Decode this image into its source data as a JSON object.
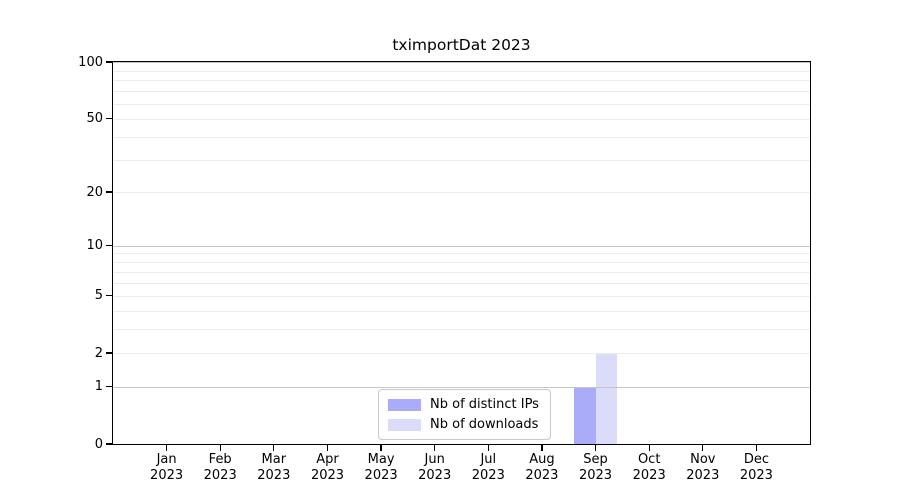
{
  "figure": {
    "background": "#ffffff"
  },
  "chart_data": {
    "type": "bar",
    "title": "tximportDat 2023",
    "categories": [
      {
        "month": "Jan",
        "year": "2023"
      },
      {
        "month": "Feb",
        "year": "2023"
      },
      {
        "month": "Mar",
        "year": "2023"
      },
      {
        "month": "Apr",
        "year": "2023"
      },
      {
        "month": "May",
        "year": "2023"
      },
      {
        "month": "Jun",
        "year": "2023"
      },
      {
        "month": "Jul",
        "year": "2023"
      },
      {
        "month": "Aug",
        "year": "2023"
      },
      {
        "month": "Sep",
        "year": "2023"
      },
      {
        "month": "Oct",
        "year": "2023"
      },
      {
        "month": "Nov",
        "year": "2023"
      },
      {
        "month": "Dec",
        "year": "2023"
      }
    ],
    "series": [
      {
        "name": "Nb of distinct IPs",
        "color": "#aaabf9",
        "values": [
          0,
          0,
          0,
          0,
          0,
          0,
          0,
          0,
          1,
          0,
          0,
          0
        ]
      },
      {
        "name": "Nb of downloads",
        "color": "#dbdcf9",
        "values": [
          0,
          0,
          0,
          0,
          0,
          0,
          0,
          0,
          2,
          0,
          0,
          0
        ]
      }
    ],
    "yscale": "log10(value+1)",
    "ylim": [
      0,
      100
    ],
    "yticks": [
      0,
      1,
      2,
      5,
      10,
      20,
      50,
      100
    ],
    "major_gridlines": [
      1,
      10,
      100
    ],
    "minor_gridlines": [
      2,
      3,
      4,
      5,
      6,
      7,
      8,
      9,
      20,
      30,
      40,
      50,
      60,
      70,
      80,
      90
    ],
    "grid": true,
    "legend_position": "bottom-center",
    "xlabel": "",
    "ylabel": ""
  },
  "colors": {
    "axis": "#000000",
    "major_grid": "#c6c6c6",
    "minor_grid": "#ececec",
    "legend_border": "#c9c9c9",
    "tick_label": "#000000"
  }
}
